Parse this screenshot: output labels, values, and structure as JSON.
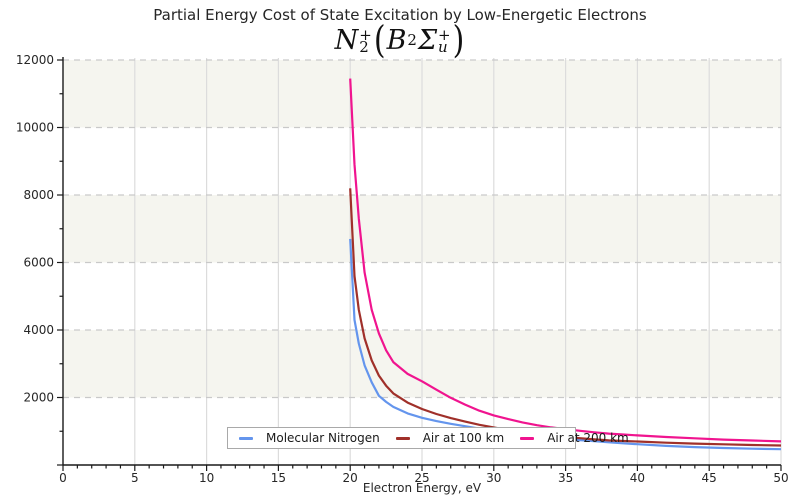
{
  "title": "Partial Energy Cost of State Excitation by Low-Energetic Electrons",
  "subtitle": {
    "text": "N2+(B2Σu+)",
    "n": "N",
    "n_sup": "+",
    "n_sub": "2",
    "open": "(",
    "b": "B",
    "b_sup": "2",
    "sigma": "Σ",
    "s_sup": "+",
    "s_sub": "u",
    "close": ")"
  },
  "legend": {
    "items": [
      {
        "label": "Molecular Nitrogen"
      },
      {
        "label": "Air at 100 km"
      },
      {
        "label": "Air at 200 km"
      }
    ]
  },
  "chart_data": {
    "type": "line",
    "title": "Partial Energy Cost of State Excitation by Low-Energetic Electrons",
    "subtitle": "N2+(B2Σu+)",
    "xlabel": "Electron Energy, eV",
    "ylabel": "",
    "xlim": [
      0,
      50
    ],
    "ylim": [
      0,
      12000
    ],
    "x_ticks": [
      0,
      5,
      10,
      15,
      20,
      25,
      30,
      35,
      40,
      45,
      50
    ],
    "y_ticks": [
      0,
      2000,
      4000,
      6000,
      8000,
      10000,
      12000
    ],
    "x_minor_step": 1,
    "y_minor_step": 1000,
    "band_step": 2000,
    "grid": true,
    "legend_position": "lower center",
    "x": [
      20,
      20.3,
      20.6,
      21,
      21.5,
      22,
      22.5,
      23,
      24,
      25,
      26,
      27,
      28,
      29,
      30,
      31,
      32,
      33,
      34,
      35,
      36,
      37,
      38,
      39,
      40,
      42,
      44,
      46,
      48,
      50
    ],
    "series": [
      {
        "name": "Molecular Nitrogen",
        "color": "#6495ED",
        "values": [
          6700,
          4300,
          3600,
          2950,
          2450,
          2050,
          1870,
          1720,
          1530,
          1400,
          1300,
          1220,
          1150,
          1080,
          1010,
          955,
          905,
          858,
          815,
          775,
          738,
          704,
          672,
          642,
          615,
          567,
          530,
          503,
          484,
          468
        ]
      },
      {
        "name": "Air at 100 km",
        "color": "#A0302A",
        "values": [
          8200,
          5600,
          4600,
          3750,
          3100,
          2650,
          2350,
          2120,
          1850,
          1660,
          1510,
          1390,
          1285,
          1190,
          1110,
          1040,
          975,
          920,
          872,
          830,
          793,
          760,
          730,
          712,
          695,
          662,
          634,
          612,
          593,
          578
        ]
      },
      {
        "name": "Air at 200 km",
        "color": "#F0148F",
        "values": [
          11450,
          8900,
          7300,
          5700,
          4600,
          3900,
          3400,
          3050,
          2700,
          2480,
          2230,
          1990,
          1790,
          1610,
          1470,
          1360,
          1262,
          1180,
          1115,
          1060,
          1012,
          968,
          930,
          903,
          878,
          830,
          790,
          752,
          726,
          700
        ]
      }
    ],
    "style": {
      "band_color": "#f5f5ef",
      "vgrid_color": "#dcdcdc",
      "hgrid_color": "#c9c9c9",
      "spine_color": "#1a1a1a",
      "tick_label_color": "#262626"
    }
  }
}
